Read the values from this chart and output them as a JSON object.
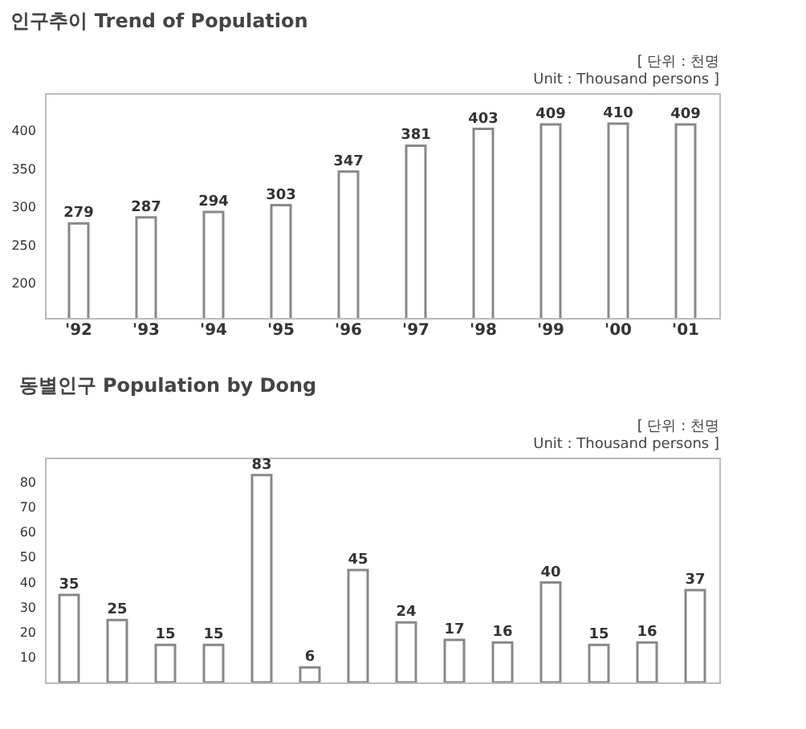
{
  "chart_data": [
    {
      "type": "bar",
      "title": "인구추이 Trend of Population",
      "annotations": [
        "[ 단위 : 천명",
        "Unit : Thousand persons ]"
      ],
      "categories": [
        "'92",
        "'93",
        "'94",
        "'95",
        "'96",
        "'97",
        "'98",
        "'99",
        "'00",
        "'01"
      ],
      "values": [
        279,
        287,
        294,
        303,
        347,
        381,
        403,
        409,
        410,
        409
      ],
      "color": "#ffffff",
      "ylim": [
        155,
        450
      ],
      "yticks": [
        200,
        250,
        300,
        350,
        400
      ],
      "grid": false,
      "data_labels": true
    },
    {
      "type": "bar",
      "title": "동별인구 Population by Dong",
      "annotations": [
        "[ 단위 : 천명",
        "Unit : Thousand persons ]"
      ],
      "categories": [
        null,
        null,
        null,
        null,
        null,
        null,
        null,
        null,
        null,
        null,
        null,
        null,
        null,
        null
      ],
      "values": [
        35,
        25,
        15,
        15,
        83,
        6,
        45,
        24,
        17,
        16,
        40,
        15,
        16,
        37
      ],
      "color": "#ffffff",
      "ylim": [
        0,
        90
      ],
      "yticks": [
        10,
        20,
        30,
        40,
        50,
        60,
        70,
        80
      ],
      "grid": false,
      "data_labels": true
    }
  ]
}
